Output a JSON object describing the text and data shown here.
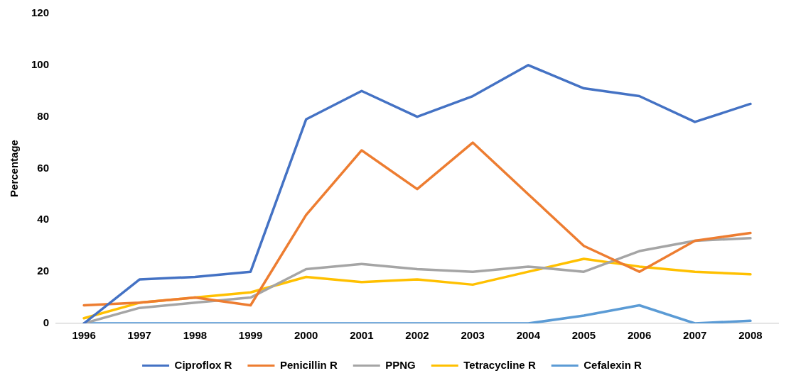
{
  "chart_data": {
    "type": "line",
    "ylabel": "Percentage",
    "categories": [
      "1996",
      "1997",
      "1998",
      "1999",
      "2000",
      "2001",
      "2002",
      "2003",
      "2004",
      "2005",
      "2006",
      "2007",
      "2008"
    ],
    "series": [
      {
        "name": "Ciproflox R",
        "color": "#4472c4",
        "values": [
          0,
          17,
          18,
          20,
          79,
          90,
          80,
          88,
          100,
          91,
          88,
          78,
          85
        ]
      },
      {
        "name": "Penicillin R",
        "color": "#ed7d31",
        "values": [
          7,
          8,
          10,
          7,
          42,
          67,
          52,
          70,
          50,
          30,
          20,
          32,
          35
        ]
      },
      {
        "name": "PPNG",
        "color": "#a5a5a5",
        "values": [
          0,
          6,
          8,
          10,
          21,
          23,
          21,
          20,
          22,
          20,
          28,
          32,
          33
        ]
      },
      {
        "name": "Tetracycline R",
        "color": "#ffc000",
        "values": [
          2,
          8,
          10,
          12,
          18,
          16,
          17,
          15,
          20,
          25,
          22,
          20,
          19
        ]
      },
      {
        "name": "Cefalexin R",
        "color": "#5b9bd5",
        "values": [
          0,
          0,
          0,
          0,
          0,
          0,
          0,
          0,
          0,
          3,
          7,
          0,
          1
        ]
      }
    ],
    "ylim": [
      0,
      120
    ],
    "yticks": [
      0,
      20,
      40,
      60,
      80,
      100,
      120
    ],
    "grid": false,
    "legend": "bottom",
    "marker": "none",
    "line_style": "solid"
  }
}
